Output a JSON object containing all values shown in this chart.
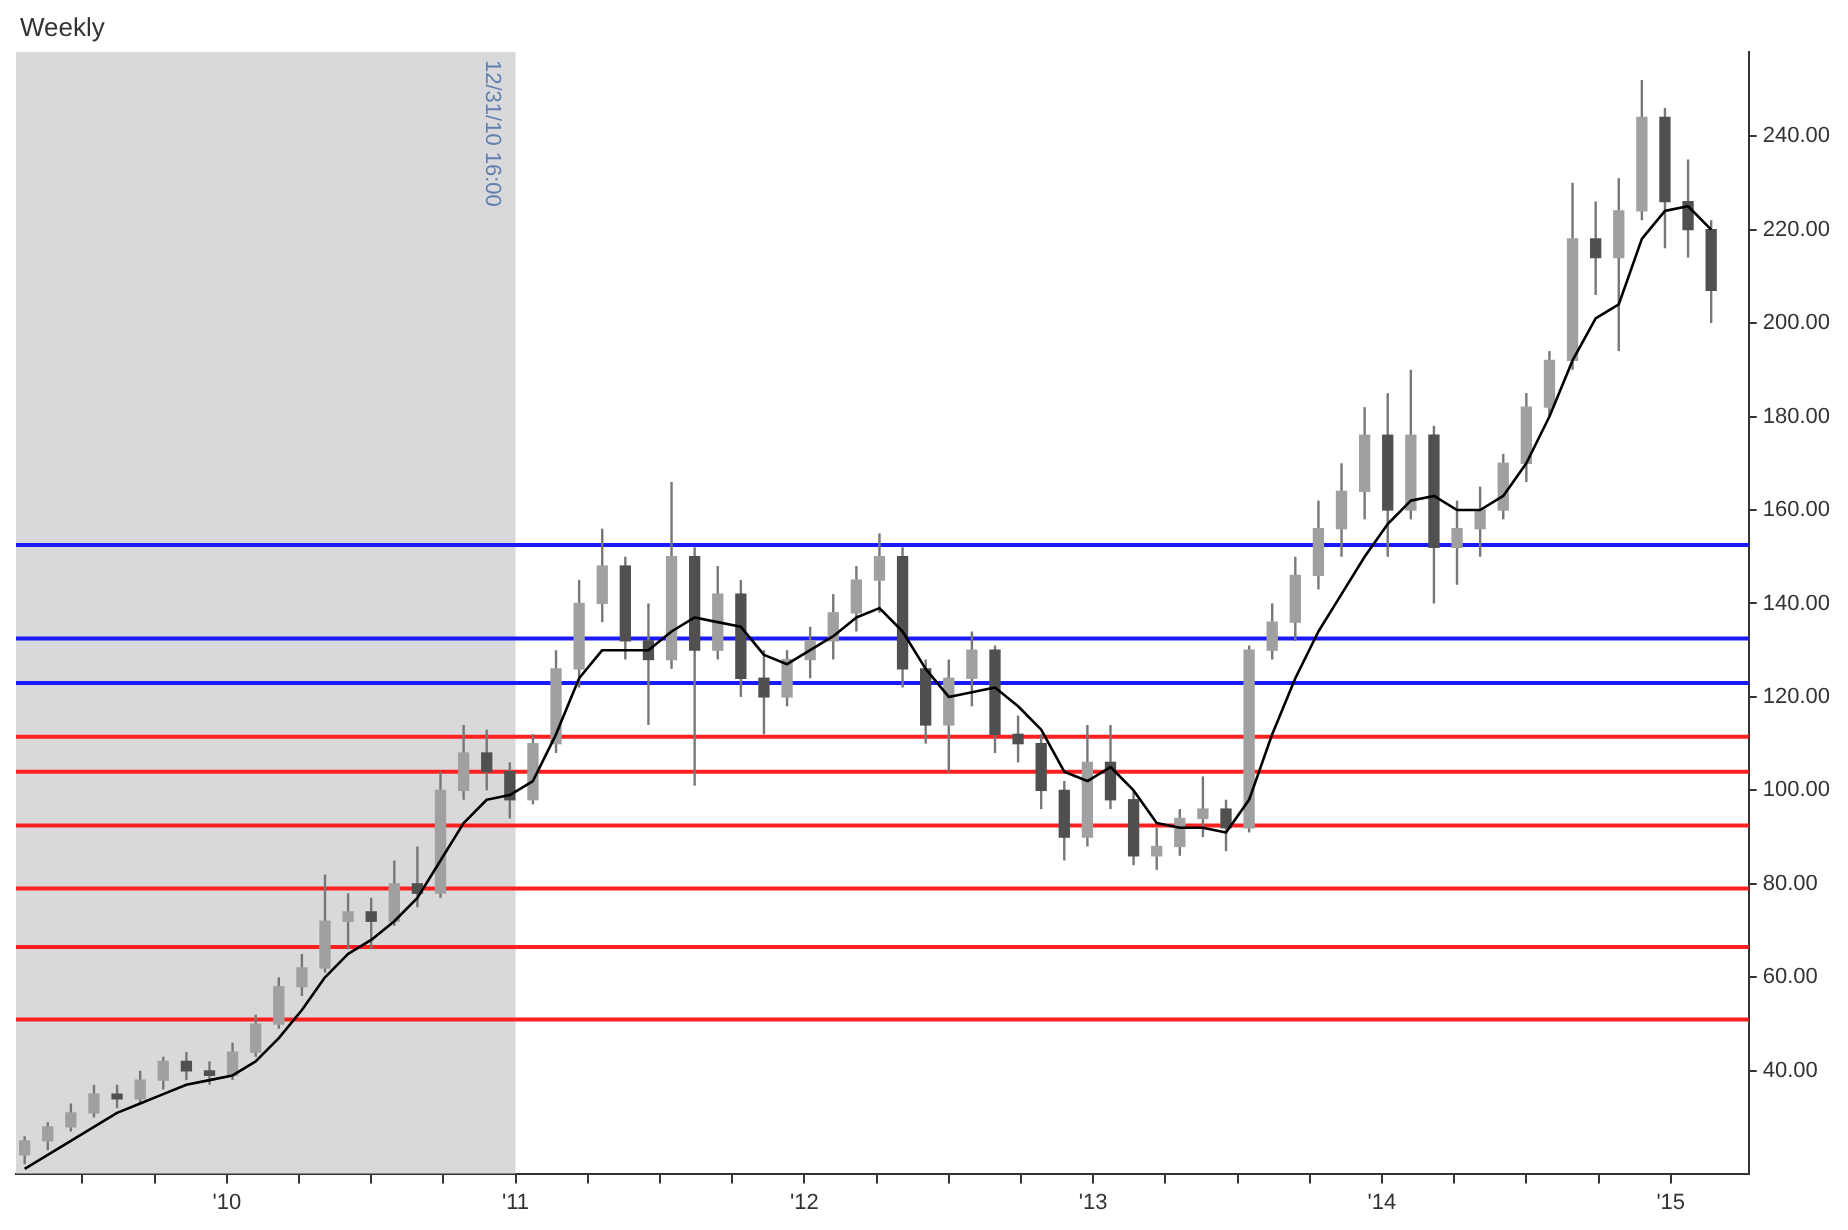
{
  "chart_data": {
    "type": "candlestick",
    "title": "Weekly",
    "color": "#777777",
    "colors": [
      "#a0a0a0",
      "#a0a0a0",
      "#a0a0a0",
      "#a0a0a0",
      "#505050",
      "#a0a0a0",
      "#a0a0a0",
      "#505050",
      "#505050",
      "#a0a0a0",
      "#a0a0a0",
      "#a0a0a0",
      "#a0a0a0",
      "#a0a0a0",
      "#a0a0a0",
      "#505050",
      "#a0a0a0",
      "#505050",
      "#a0a0a0",
      "#a0a0a0",
      "#505050",
      "#505050",
      "#a0a0a0",
      "#a0a0a0",
      "#a0a0a0",
      "#a0a0a0",
      "#505050",
      "#505050",
      "#a0a0a0",
      "#505050",
      "#a0a0a0",
      "#505050",
      "#505050",
      "#a0a0a0",
      "#a0a0a0",
      "#a0a0a0",
      "#a0a0a0",
      "#a0a0a0",
      "#505050",
      "#505050",
      "#a0a0a0",
      "#a0a0a0",
      "#505050",
      "#505050",
      "#505050",
      "#505050",
      "#a0a0a0",
      "#505050",
      "#505050",
      "#a0a0a0",
      "#a0a0a0",
      "#a0a0a0",
      "#505050",
      "#a0a0a0",
      "#a0a0a0",
      "#a0a0a0",
      "#a0a0a0",
      "#a0a0a0",
      "#a0a0a0",
      "#505050",
      "#a0a0a0",
      "#505050",
      "#a0a0a0",
      "#a0a0a0",
      "#a0a0a0",
      "#a0a0a0",
      "#a0a0a0",
      "#a0a0a0",
      "#505050",
      "#a0a0a0",
      "#a0a0a0",
      "#505050",
      "#505050",
      "#505050"
    ],
    "x": [
      2009.3,
      2009.38,
      2009.46,
      2009.54,
      2009.62,
      2009.7,
      2009.78,
      2009.86,
      2009.94,
      2010.02,
      2010.1,
      2010.18,
      2010.26,
      2010.34,
      2010.42,
      2010.5,
      2010.58,
      2010.66,
      2010.74,
      2010.82,
      2010.9,
      2010.98,
      2011.06,
      2011.14,
      2011.22,
      2011.3,
      2011.38,
      2011.46,
      2011.54,
      2011.62,
      2011.7,
      2011.78,
      2011.86,
      2011.94,
      2012.02,
      2012.1,
      2012.18,
      2012.26,
      2012.34,
      2012.42,
      2012.5,
      2012.58,
      2012.66,
      2012.74,
      2012.82,
      2012.9,
      2012.98,
      2013.06,
      2013.14,
      2013.22,
      2013.3,
      2013.38,
      2013.46,
      2013.54,
      2013.62,
      2013.7,
      2013.78,
      2013.86,
      2013.94,
      2014.02,
      2014.1,
      2014.18,
      2014.26,
      2014.34,
      2014.42,
      2014.5,
      2014.58,
      2014.66,
      2014.74,
      2014.82,
      2014.9,
      2014.98,
      2015.06,
      2015.14
    ],
    "ohlc": [
      [
        22,
        26,
        20,
        25
      ],
      [
        25,
        29,
        23,
        28
      ],
      [
        28,
        33,
        27,
        31
      ],
      [
        31,
        37,
        30,
        35
      ],
      [
        35,
        37,
        32,
        34
      ],
      [
        34,
        40,
        33,
        38
      ],
      [
        38,
        43,
        36,
        42
      ],
      [
        42,
        44,
        38,
        40
      ],
      [
        40,
        42,
        37,
        39
      ],
      [
        39,
        46,
        38,
        44
      ],
      [
        44,
        52,
        43,
        50
      ],
      [
        50,
        60,
        49,
        58
      ],
      [
        58,
        65,
        56,
        62
      ],
      [
        62,
        82,
        61,
        72
      ],
      [
        72,
        78,
        66,
        74
      ],
      [
        74,
        77,
        66,
        72
      ],
      [
        72,
        85,
        71,
        80
      ],
      [
        80,
        88,
        75,
        78
      ],
      [
        78,
        104,
        77,
        100
      ],
      [
        100,
        114,
        98,
        108
      ],
      [
        108,
        113,
        100,
        104
      ],
      [
        104,
        106,
        94,
        98
      ],
      [
        98,
        112,
        97,
        110
      ],
      [
        110,
        130,
        108,
        126
      ],
      [
        126,
        145,
        122,
        140
      ],
      [
        140,
        156,
        136,
        148
      ],
      [
        148,
        150,
        128,
        132
      ],
      [
        132,
        140,
        114,
        128
      ],
      [
        128,
        166,
        126,
        150
      ],
      [
        150,
        152,
        101,
        130
      ],
      [
        130,
        148,
        128,
        142
      ],
      [
        142,
        145,
        120,
        124
      ],
      [
        124,
        130,
        112,
        120
      ],
      [
        120,
        130,
        118,
        128
      ],
      [
        128,
        135,
        124,
        132
      ],
      [
        132,
        142,
        128,
        138
      ],
      [
        138,
        148,
        134,
        145
      ],
      [
        145,
        155,
        138,
        150
      ],
      [
        150,
        152,
        122,
        126
      ],
      [
        126,
        128,
        110,
        114
      ],
      [
        114,
        128,
        104,
        124
      ],
      [
        124,
        134,
        118,
        130
      ],
      [
        130,
        131,
        108,
        112
      ],
      [
        112,
        116,
        106,
        110
      ],
      [
        110,
        112,
        96,
        100
      ],
      [
        100,
        102,
        85,
        90
      ],
      [
        90,
        114,
        88,
        106
      ],
      [
        106,
        114,
        96,
        98
      ],
      [
        98,
        100,
        84,
        86
      ],
      [
        86,
        92,
        83,
        88
      ],
      [
        88,
        96,
        86,
        94
      ],
      [
        94,
        103,
        90,
        96
      ],
      [
        96,
        98,
        87,
        92
      ],
      [
        92,
        131,
        91,
        130
      ],
      [
        130,
        140,
        128,
        136
      ],
      [
        136,
        150,
        132,
        146
      ],
      [
        146,
        162,
        143,
        156
      ],
      [
        156,
        170,
        150,
        164
      ],
      [
        164,
        182,
        158,
        176
      ],
      [
        176,
        185,
        150,
        160
      ],
      [
        160,
        190,
        158,
        176
      ],
      [
        176,
        178,
        140,
        152
      ],
      [
        152,
        162,
        144,
        156
      ],
      [
        156,
        165,
        150,
        160
      ],
      [
        160,
        172,
        158,
        170
      ],
      [
        170,
        185,
        166,
        182
      ],
      [
        182,
        194,
        180,
        192
      ],
      [
        192,
        230,
        190,
        218
      ],
      [
        218,
        226,
        206,
        214
      ],
      [
        214,
        231,
        194,
        224
      ],
      [
        224,
        252,
        222,
        244
      ],
      [
        244,
        246,
        216,
        226
      ],
      [
        226,
        235,
        214,
        220
      ],
      [
        220,
        222,
        200,
        207
      ]
    ],
    "series": [
      {
        "type": "line",
        "color": "#000000",
        "x": [
          2009.3,
          2009.38,
          2009.46,
          2009.54,
          2009.62,
          2009.7,
          2009.78,
          2009.86,
          2009.94,
          2010.02,
          2010.1,
          2010.18,
          2010.26,
          2010.34,
          2010.42,
          2010.5,
          2010.58,
          2010.66,
          2010.74,
          2010.82,
          2010.9,
          2010.98,
          2011.06,
          2011.14,
          2011.22,
          2011.3,
          2011.38,
          2011.46,
          2011.54,
          2011.62,
          2011.7,
          2011.78,
          2011.86,
          2011.94,
          2012.02,
          2012.1,
          2012.18,
          2012.26,
          2012.34,
          2012.42,
          2012.5,
          2012.58,
          2012.66,
          2012.74,
          2012.82,
          2012.9,
          2012.98,
          2013.06,
          2013.14,
          2013.22,
          2013.3,
          2013.38,
          2013.46,
          2013.54,
          2013.62,
          2013.7,
          2013.78,
          2013.86,
          2013.94,
          2014.02,
          2014.1,
          2014.18,
          2014.26,
          2014.34,
          2014.42,
          2014.5,
          2014.58,
          2014.66,
          2014.74,
          2014.82,
          2014.9,
          2014.98,
          2015.06,
          2015.14
        ],
        "values": [
          19,
          22,
          25,
          28,
          31,
          33,
          35,
          37,
          38,
          39,
          42,
          47,
          53,
          60,
          65,
          68,
          72,
          77,
          85,
          93,
          98,
          99,
          102,
          112,
          124,
          130,
          130,
          130,
          134,
          137,
          136,
          135,
          129,
          127,
          130,
          133,
          137,
          139,
          134,
          126,
          120,
          121,
          122,
          118,
          113,
          104,
          102,
          105,
          100,
          93,
          92,
          92,
          91,
          98,
          112,
          124,
          134,
          142,
          150,
          157,
          162,
          163,
          160,
          160,
          163,
          170,
          180,
          192,
          201,
          204,
          218,
          224,
          225,
          220
        ]
      }
    ],
    "xlim": [
      2009.27,
      2015.27
    ],
    "xticks": [
      {
        "value": 2009.5,
        "label": null
      },
      {
        "value": 2009.75,
        "label": null
      },
      {
        "value": 2010,
        "label": "'10"
      },
      {
        "value": 2010.25,
        "label": null
      },
      {
        "value": 2010.5,
        "label": null
      },
      {
        "value": 2010.75,
        "label": null
      },
      {
        "value": 2011,
        "label": "'11"
      },
      {
        "value": 2011.25,
        "label": null
      },
      {
        "value": 2011.5,
        "label": null
      },
      {
        "value": 2011.75,
        "label": null
      },
      {
        "value": 2012,
        "label": "'12"
      },
      {
        "value": 2012.25,
        "label": null
      },
      {
        "value": 2012.5,
        "label": null
      },
      {
        "value": 2012.75,
        "label": null
      },
      {
        "value": 2013,
        "label": "'13"
      },
      {
        "value": 2013.25,
        "label": null
      },
      {
        "value": 2013.5,
        "label": null
      },
      {
        "value": 2013.75,
        "label": null
      },
      {
        "value": 2014,
        "label": "'14"
      },
      {
        "value": 2014.25,
        "label": null
      },
      {
        "value": 2014.5,
        "label": null
      },
      {
        "value": 2014.75,
        "label": null
      },
      {
        "value": 2015,
        "label": "'15"
      }
    ],
    "ylim": [
      18,
      258
    ],
    "yticks": [
      {
        "value": 40,
        "label": "40.00"
      },
      {
        "value": 60,
        "label": "60.00"
      },
      {
        "value": 80,
        "label": "80.00"
      },
      {
        "value": 100,
        "label": "100.00"
      },
      {
        "value": 120,
        "label": "120.00"
      },
      {
        "value": 140,
        "label": "140.00"
      },
      {
        "value": 160,
        "label": "160.00"
      },
      {
        "value": 180,
        "label": "180.00"
      },
      {
        "value": 200,
        "label": "200.00"
      },
      {
        "value": 220,
        "label": "220.00"
      },
      {
        "value": 240,
        "label": "240.00"
      }
    ],
    "bands": [
      {
        "axis": "x",
        "from": 2009.27,
        "to": 2011.0,
        "label": "12/31/10 16:00",
        "color": "#d9d9db"
      }
    ],
    "ref_lines": [
      {
        "axis": "y",
        "value": 152.5,
        "color": "#1a1aff"
      },
      {
        "axis": "y",
        "value": 132.5,
        "color": "#1a1aff"
      },
      {
        "axis": "y",
        "value": 123,
        "color": "#1a1aff"
      },
      {
        "axis": "y",
        "value": 111.5,
        "color": "#ff2020"
      },
      {
        "axis": "y",
        "value": 104,
        "color": "#ff2020"
      },
      {
        "axis": "y",
        "value": 92.5,
        "color": "#ff2020"
      },
      {
        "axis": "y",
        "value": 79,
        "color": "#ff2020"
      },
      {
        "axis": "y",
        "value": 66.5,
        "color": "#ff2020"
      },
      {
        "axis": "y",
        "value": 51,
        "color": "#ff2020"
      }
    ]
  }
}
